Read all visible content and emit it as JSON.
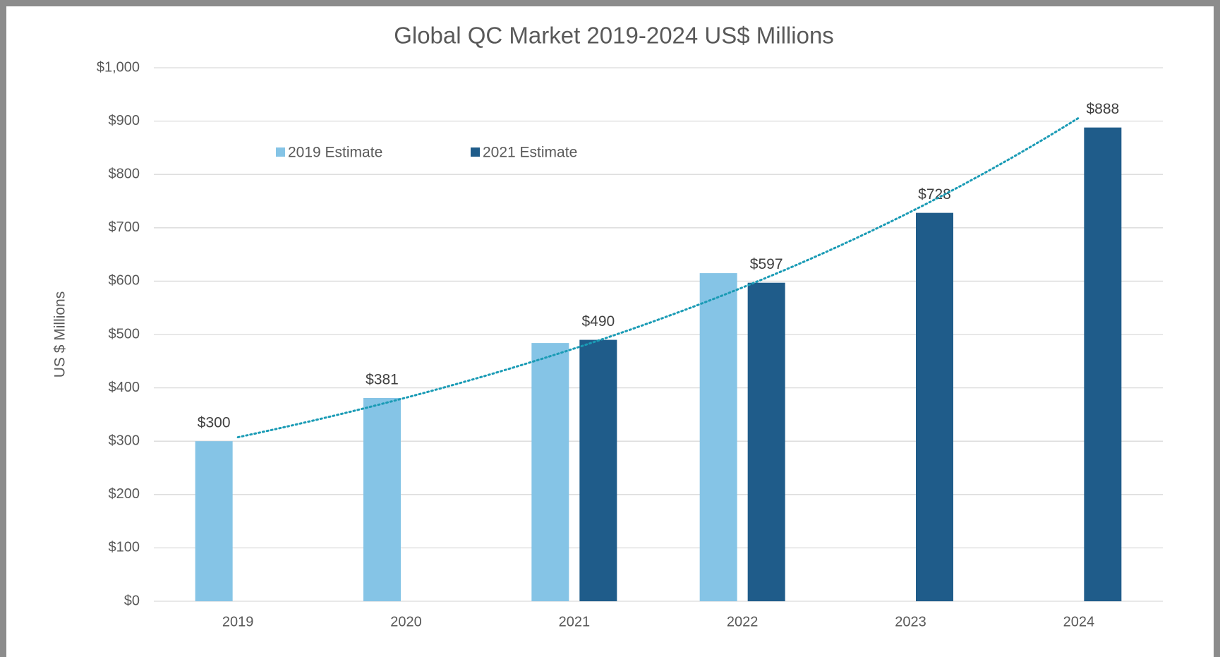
{
  "chart_data": {
    "type": "bar",
    "title": "Global QC Market  2019-2024 US$ Millions",
    "y_label": "US $ Millions",
    "categories": [
      "2019",
      "2020",
      "2021",
      "2022",
      "2023",
      "2024"
    ],
    "series": [
      {
        "name": "2019 Estimate",
        "color": "#85c4e6",
        "values": [
          300,
          381,
          484,
          615,
          null,
          null
        ],
        "value_labels": [
          "$300",
          "$381",
          null,
          null,
          null,
          null
        ]
      },
      {
        "name": "2021 Estimate",
        "color": "#1f5c8a",
        "values": [
          null,
          null,
          490,
          597,
          728,
          888
        ],
        "value_labels": [
          null,
          null,
          "$490",
          "$597",
          "$728",
          "$888"
        ]
      }
    ],
    "ylim": [
      0,
      1000
    ],
    "yticks": [
      {
        "value": 0,
        "label": "$0"
      },
      {
        "value": 100,
        "label": "$100"
      },
      {
        "value": 200,
        "label": "$200"
      },
      {
        "value": 300,
        "label": "$300"
      },
      {
        "value": 400,
        "label": "$400"
      },
      {
        "value": 500,
        "label": "$500"
      },
      {
        "value": 600,
        "label": "$600"
      },
      {
        "value": 700,
        "label": "$700"
      },
      {
        "value": 800,
        "label": "$800"
      },
      {
        "value": 900,
        "label": "$900"
      },
      {
        "value": 1000,
        "label": "$1,000"
      }
    ],
    "grid": true,
    "legend": "top-left",
    "trendline": {
      "type": "exponential",
      "color": "#1a9bb5"
    }
  }
}
